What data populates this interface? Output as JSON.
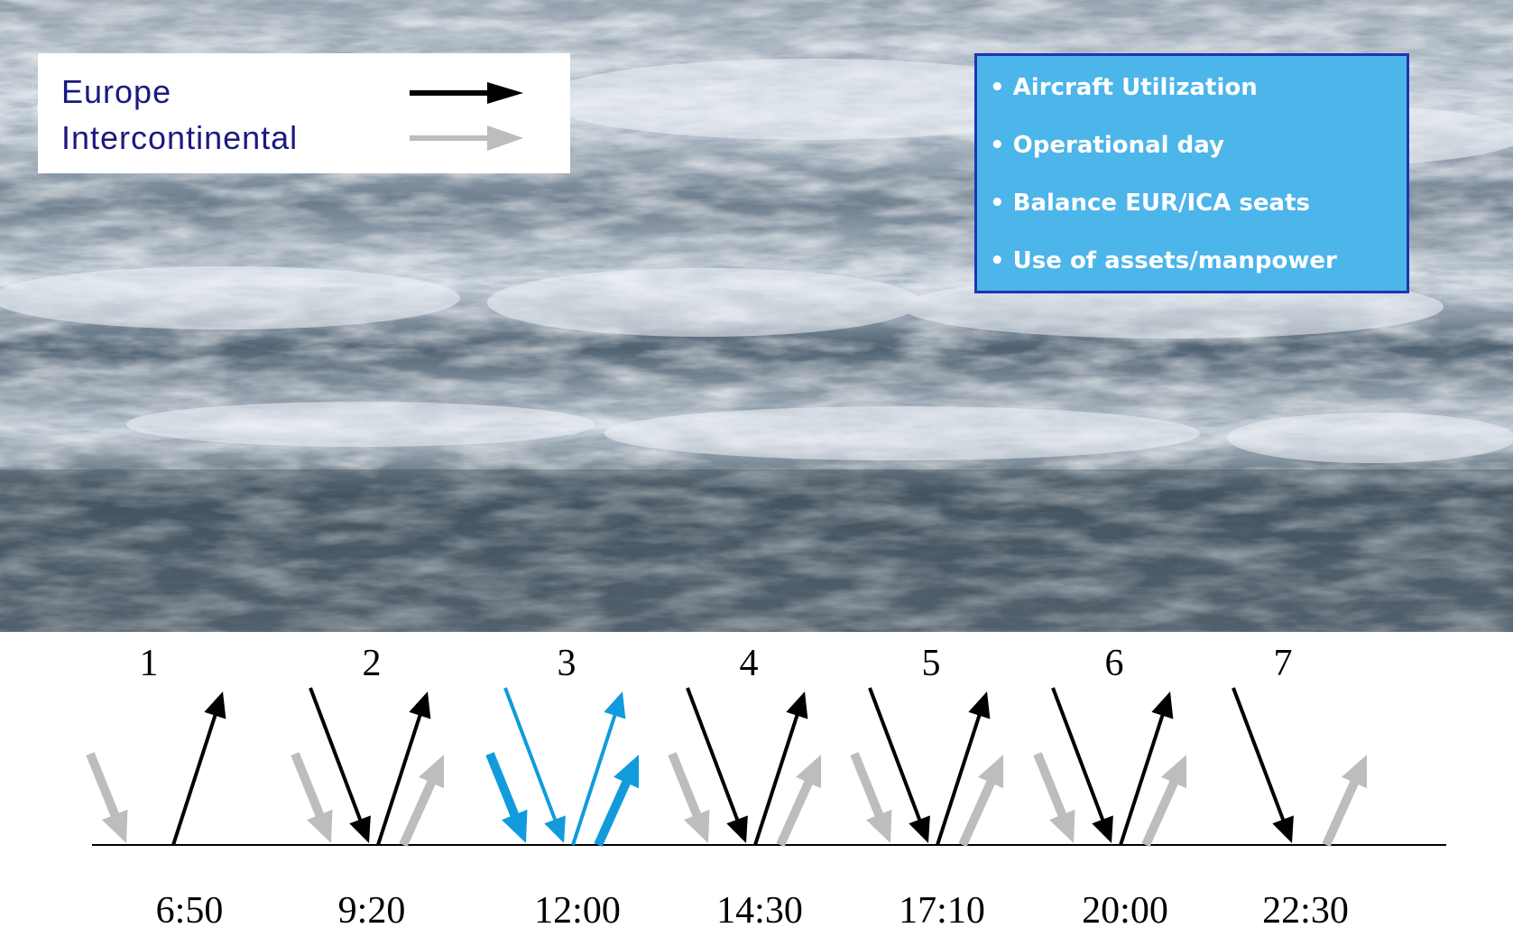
{
  "legend": {
    "europe_label": "Europe",
    "intercontinental_label": "Intercontinental",
    "europe_color": "#000000",
    "intercontinental_color": "#bdbdbd"
  },
  "objectives": {
    "items": [
      "Aircraft Utilization",
      "Operational day",
      "Balance EUR/ICA seats",
      "Use of assets/manpower"
    ],
    "box_color": "#4cb5ea",
    "border_color": "#1e34b0"
  },
  "banks": [
    {
      "number": "1",
      "time": "6:50",
      "europe_in": false,
      "europe_out": true,
      "ica_in": true,
      "ica_out": false,
      "highlight": false
    },
    {
      "number": "2",
      "time": "9:20",
      "europe_in": true,
      "europe_out": true,
      "ica_in": true,
      "ica_out": true,
      "highlight": false
    },
    {
      "number": "3",
      "time": "12:00",
      "europe_in": true,
      "europe_out": true,
      "ica_in": true,
      "ica_out": true,
      "highlight": true
    },
    {
      "number": "4",
      "time": "14:30",
      "europe_in": true,
      "europe_out": true,
      "ica_in": true,
      "ica_out": true,
      "highlight": false
    },
    {
      "number": "5",
      "time": "17:10",
      "europe_in": true,
      "europe_out": true,
      "ica_in": true,
      "ica_out": true,
      "highlight": false
    },
    {
      "number": "6",
      "time": "20:00",
      "europe_in": true,
      "europe_out": true,
      "ica_in": true,
      "ica_out": true,
      "highlight": false
    },
    {
      "number": "7",
      "time": "22:30",
      "europe_in": true,
      "europe_out": false,
      "ica_in": false,
      "ica_out": true,
      "highlight": false
    }
  ],
  "highlight_color": "#119bdc",
  "photo_icon": "ocean-waves-photo"
}
